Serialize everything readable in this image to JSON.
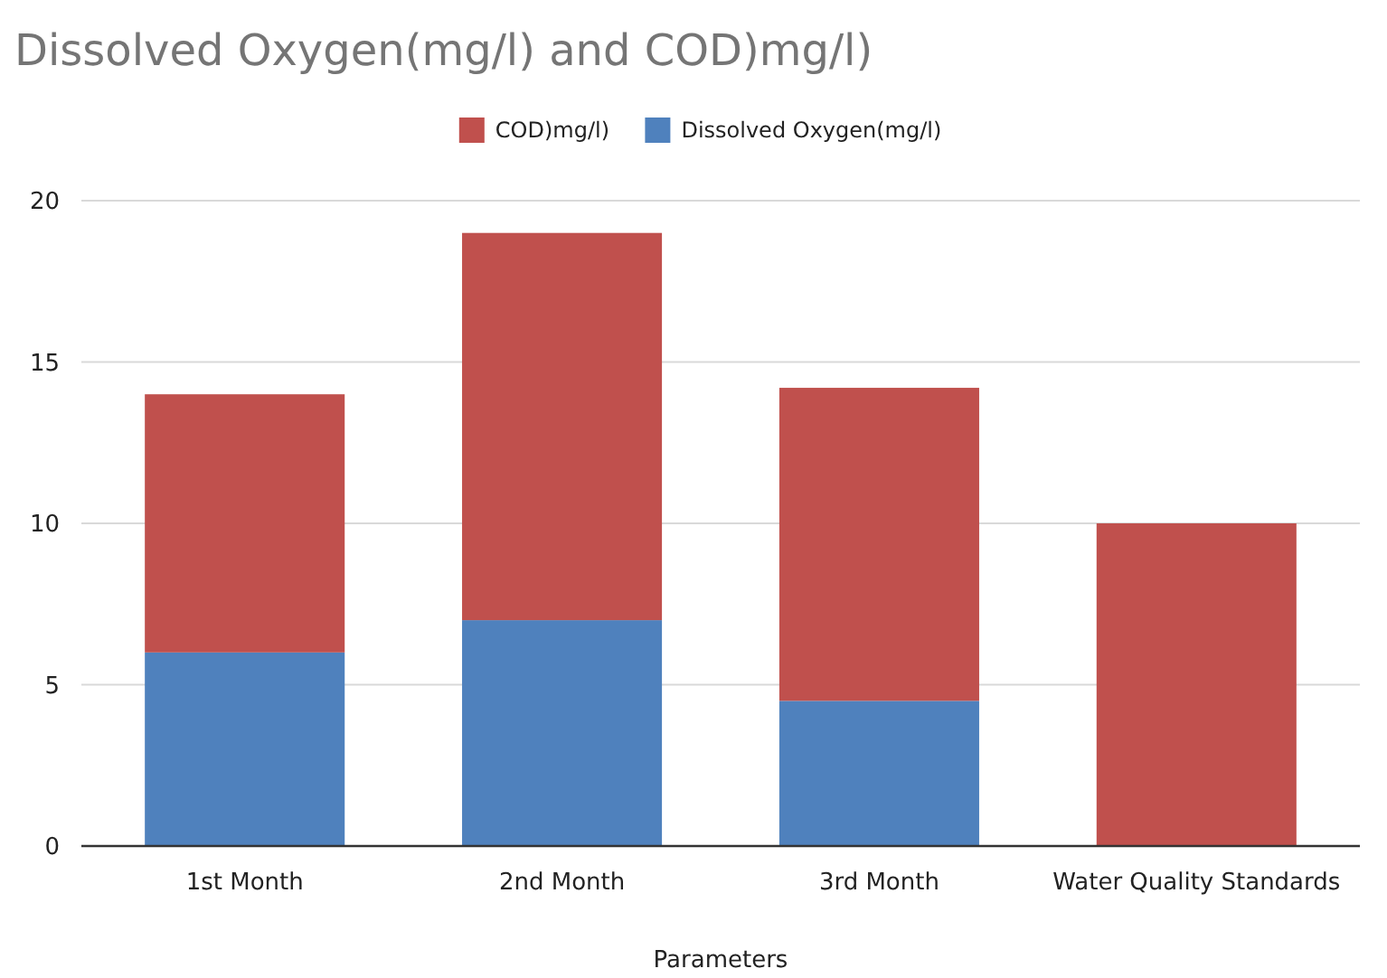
{
  "chart_data": {
    "type": "bar",
    "title": "Dissolved Oxygen(mg/l) and COD)mg/l)",
    "xlabel": "Parameters",
    "categories": [
      "1st Month",
      "2nd Month",
      "3rd Month",
      "Water Quality Standards"
    ],
    "stacked": true,
    "series": [
      {
        "name": "Dissolved Oxygen(mg/l)",
        "color": "#4f81bd",
        "values": [
          6,
          7,
          4.5,
          0
        ]
      },
      {
        "name": "COD)mg/l)",
        "color": "#c0504d",
        "values": [
          8,
          12,
          9.7,
          10
        ]
      }
    ],
    "ylim": [
      0,
      20
    ],
    "yticks": [
      0,
      5,
      10,
      15,
      20
    ],
    "grid": "y",
    "legend": "top"
  }
}
